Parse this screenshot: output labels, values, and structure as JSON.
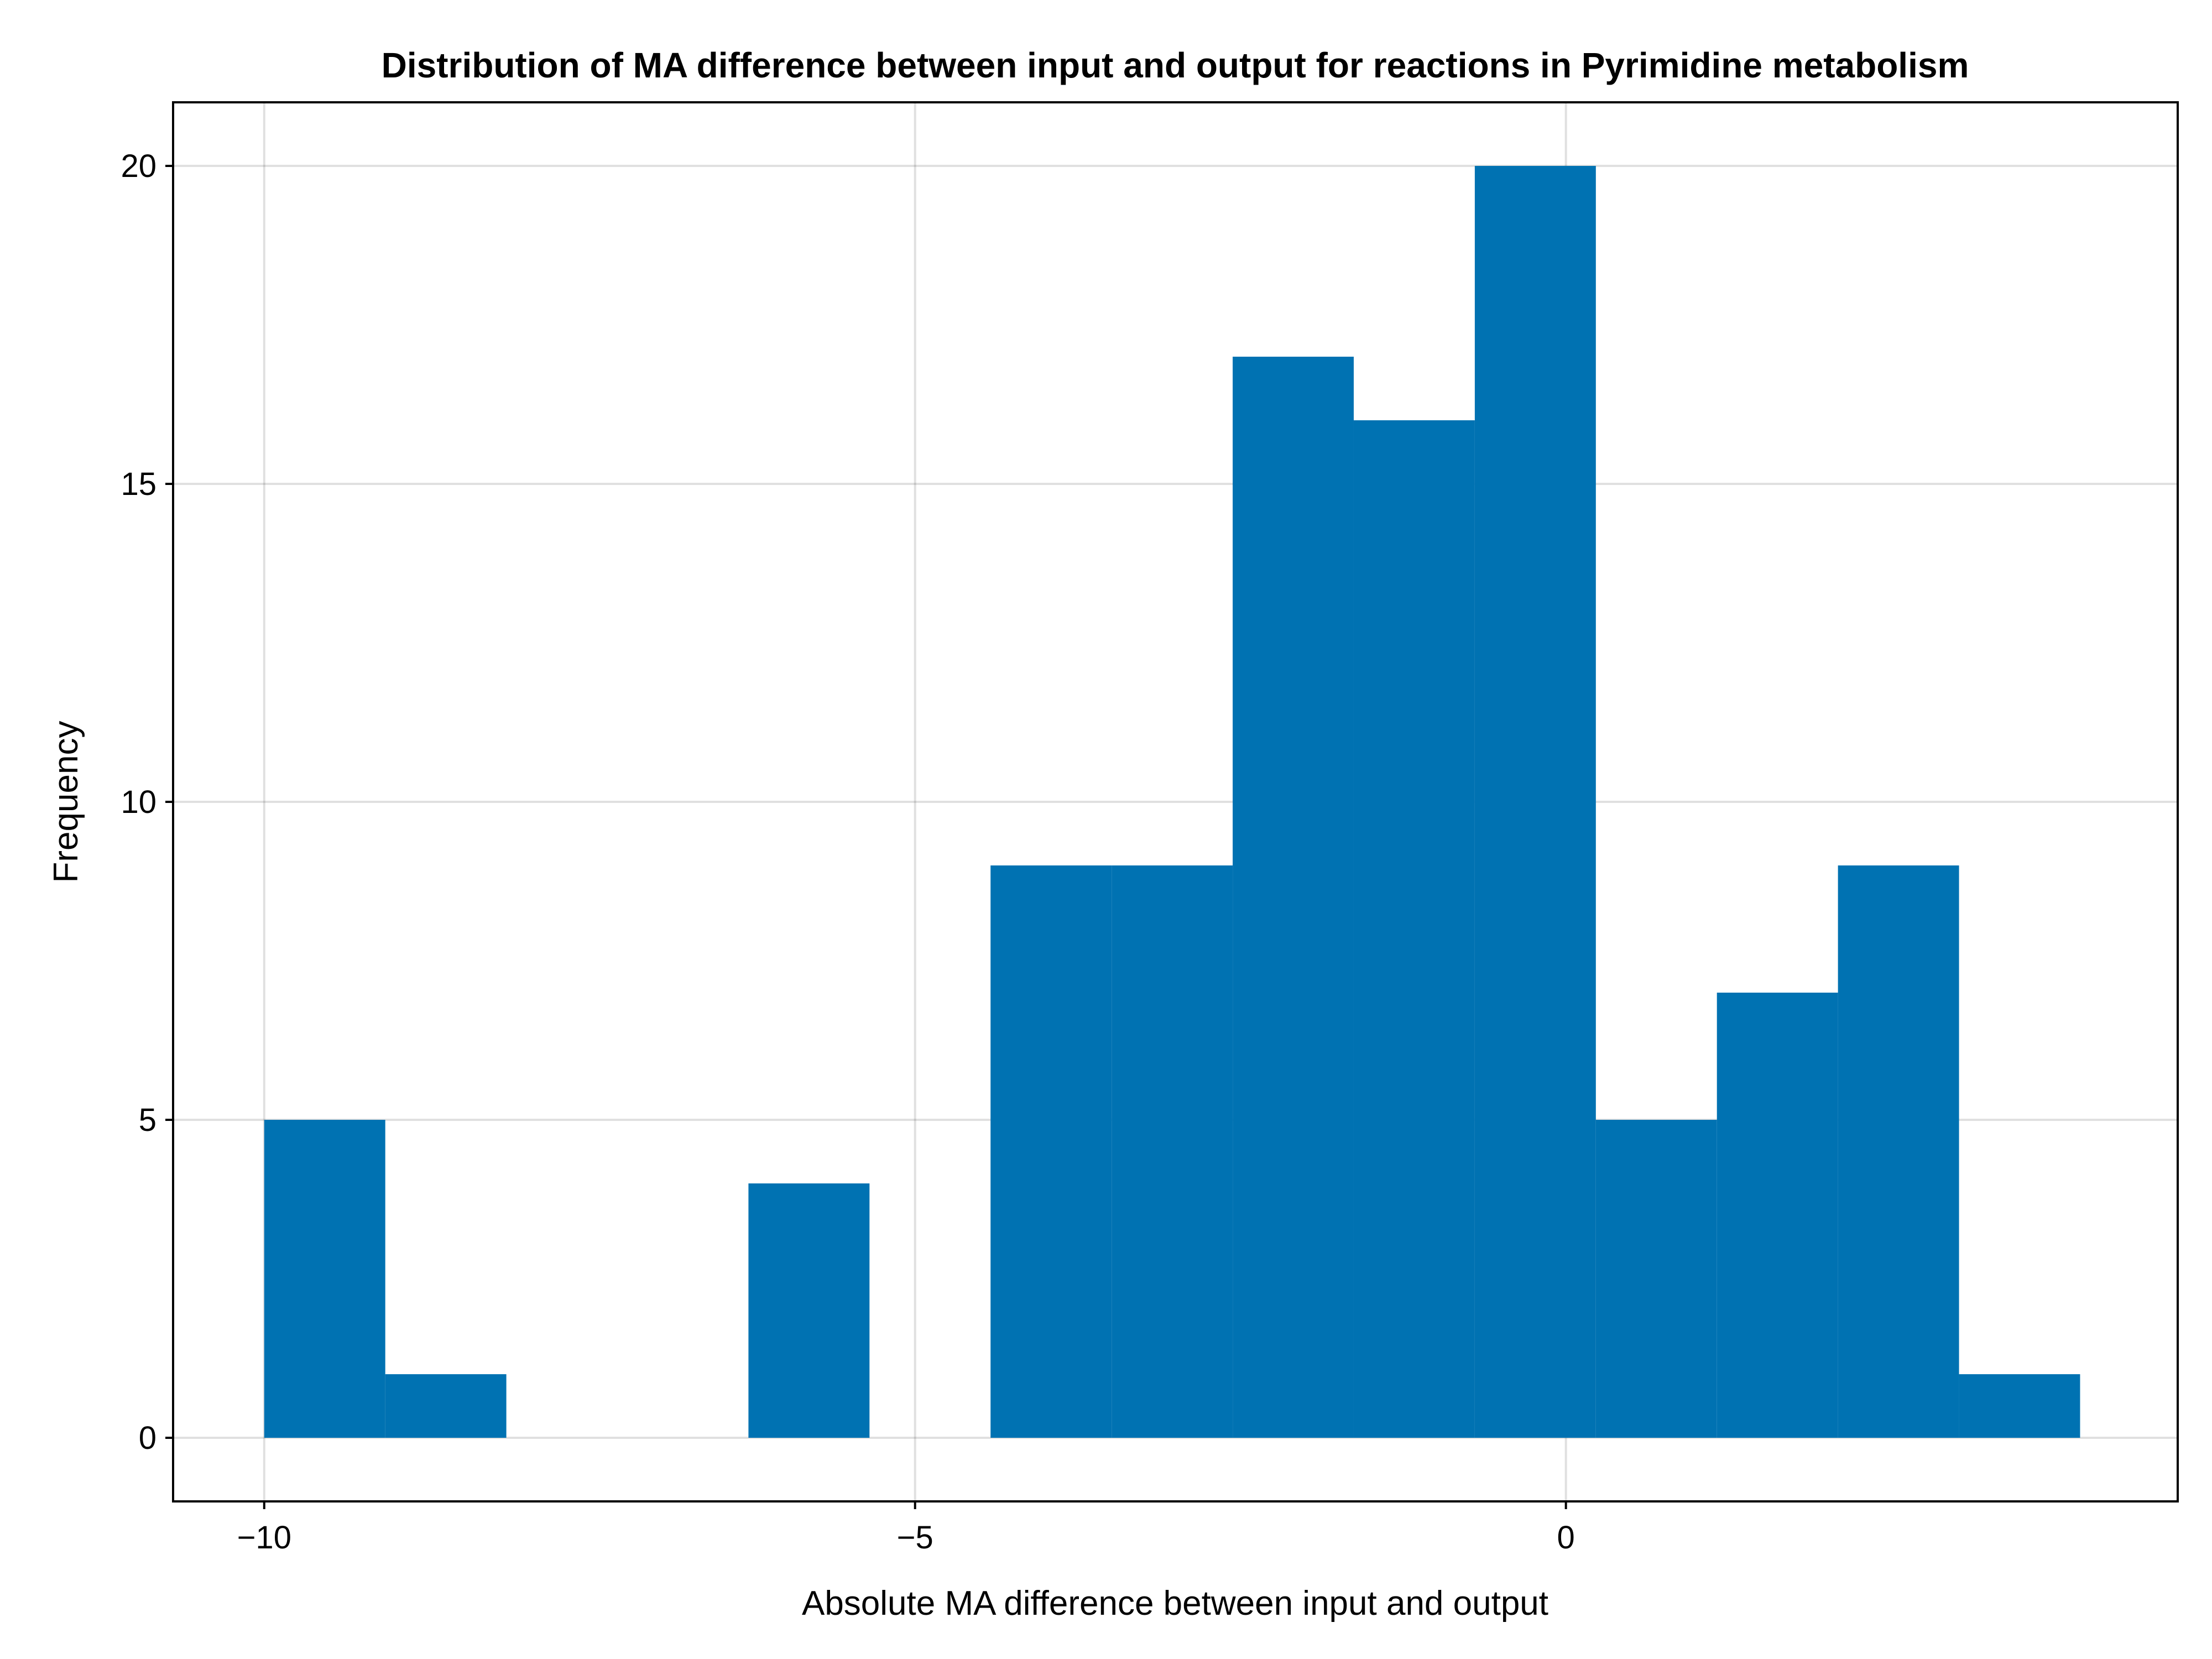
{
  "colors": {
    "bar": "#0072b2"
  },
  "chart_data": {
    "type": "bar",
    "title": "Distribution of MA difference between input and output for reactions in Pyrimidine metabolism",
    "xlabel": "Absolute MA difference between input and output",
    "ylabel": "Frequency",
    "xlim": [
      -10.7,
      4.7
    ],
    "ylim": [
      -1,
      21
    ],
    "xticks": [
      -10,
      -5,
      0
    ],
    "xtick_labels": [
      "−10",
      "−5",
      "0"
    ],
    "yticks": [
      0,
      5,
      10,
      15,
      20
    ],
    "ytick_labels": [
      "0",
      "5",
      "10",
      "15",
      "20"
    ],
    "grid": true,
    "bins": [
      {
        "x0": -10.0,
        "x1": -9.07,
        "value": 5
      },
      {
        "x0": -9.07,
        "x1": -8.14,
        "value": 1
      },
      {
        "x0": -8.14,
        "x1": -7.21,
        "value": 0
      },
      {
        "x0": -7.21,
        "x1": -6.28,
        "value": 0
      },
      {
        "x0": -6.28,
        "x1": -5.35,
        "value": 4
      },
      {
        "x0": -5.35,
        "x1": -4.42,
        "value": 0
      },
      {
        "x0": -4.42,
        "x1": -3.49,
        "value": 9
      },
      {
        "x0": -3.49,
        "x1": -2.56,
        "value": 9
      },
      {
        "x0": -2.56,
        "x1": -1.63,
        "value": 17
      },
      {
        "x0": -1.63,
        "x1": -0.7,
        "value": 16
      },
      {
        "x0": -0.7,
        "x1": 0.23,
        "value": 20
      },
      {
        "x0": 0.23,
        "x1": 1.16,
        "value": 5
      },
      {
        "x0": 1.16,
        "x1": 2.09,
        "value": 7
      },
      {
        "x0": 2.09,
        "x1": 3.02,
        "value": 9
      },
      {
        "x0": 3.02,
        "x1": 3.95,
        "value": 1
      }
    ]
  }
}
